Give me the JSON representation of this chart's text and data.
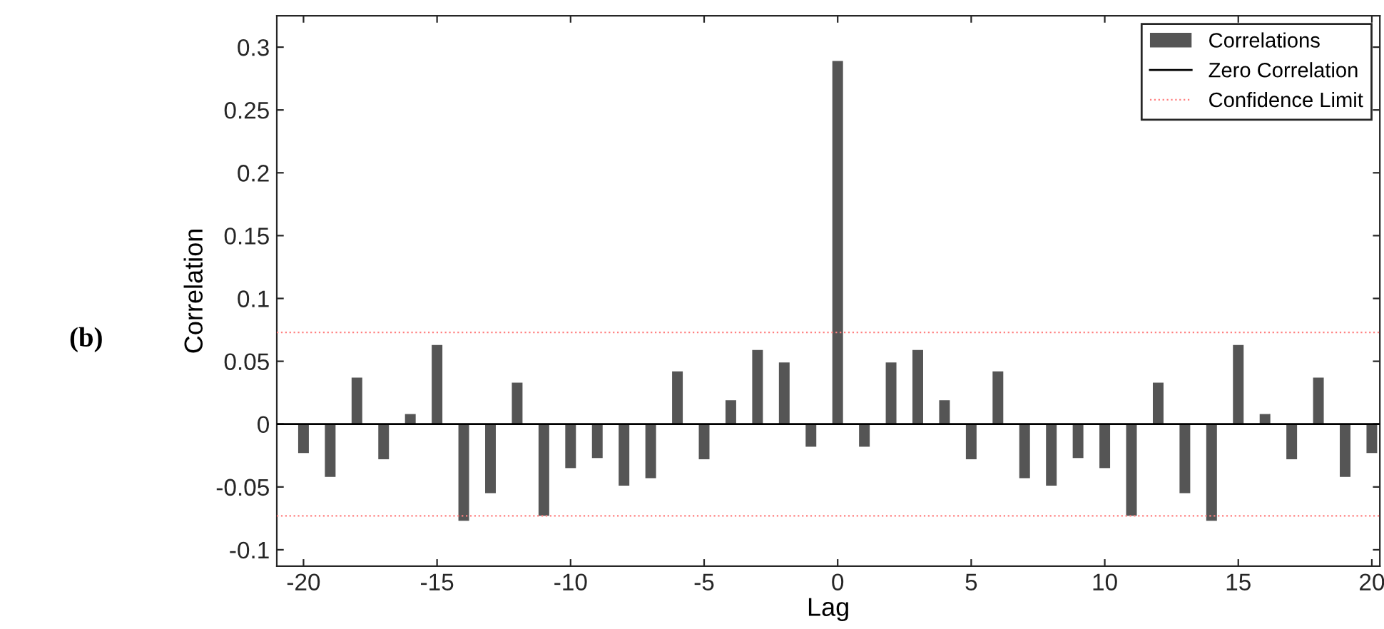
{
  "chart_data": {
    "type": "bar",
    "xlabel": "Lag",
    "ylabel": "Correlation",
    "x": [
      -20,
      -19,
      -18,
      -17,
      -16,
      -15,
      -14,
      -13,
      -12,
      -11,
      -10,
      -9,
      -8,
      -7,
      -6,
      -5,
      -4,
      -3,
      -2,
      -1,
      0,
      1,
      2,
      3,
      4,
      5,
      6,
      7,
      8,
      9,
      10,
      11,
      12,
      13,
      14,
      15,
      16,
      17,
      18,
      19,
      20
    ],
    "series": [
      {
        "name": "Correlations",
        "color": "#555555",
        "values": [
          -0.023,
          -0.042,
          0.037,
          -0.028,
          0.008,
          0.063,
          -0.077,
          -0.055,
          0.033,
          -0.073,
          -0.035,
          -0.027,
          -0.049,
          -0.043,
          0.042,
          -0.028,
          0.019,
          0.059,
          0.049,
          -0.018,
          0.289,
          -0.018,
          0.049,
          0.059,
          0.019,
          -0.028,
          0.042,
          -0.043,
          -0.049,
          -0.027,
          -0.035,
          -0.073,
          0.033,
          -0.055,
          -0.077,
          0.063,
          0.008,
          -0.028,
          0.037,
          -0.042,
          -0.023
        ]
      }
    ],
    "ref_lines": [
      {
        "axis": "y",
        "value": 0,
        "label": "Zero Correlation",
        "color": "#000000",
        "line_style": "solid"
      },
      {
        "axis": "y",
        "value": 0.073,
        "label": "Confidence Limit",
        "color": "#ff8080",
        "line_style": "dotted"
      },
      {
        "axis": "y",
        "value": -0.073,
        "label": null,
        "color": "#ff8080",
        "line_style": "dotted"
      }
    ],
    "xlim": [
      -21,
      20.3
    ],
    "ylim": [
      -0.113,
      0.325
    ],
    "xticks": [
      -20,
      -15,
      -10,
      -5,
      0,
      5,
      10,
      15,
      20
    ],
    "yticks": [
      -0.1,
      -0.05,
      0,
      0.05,
      0.1,
      0.15,
      0.2,
      0.25,
      0.3
    ],
    "annotations": [
      "(b)"
    ],
    "legend": "top right",
    "grid": false
  }
}
